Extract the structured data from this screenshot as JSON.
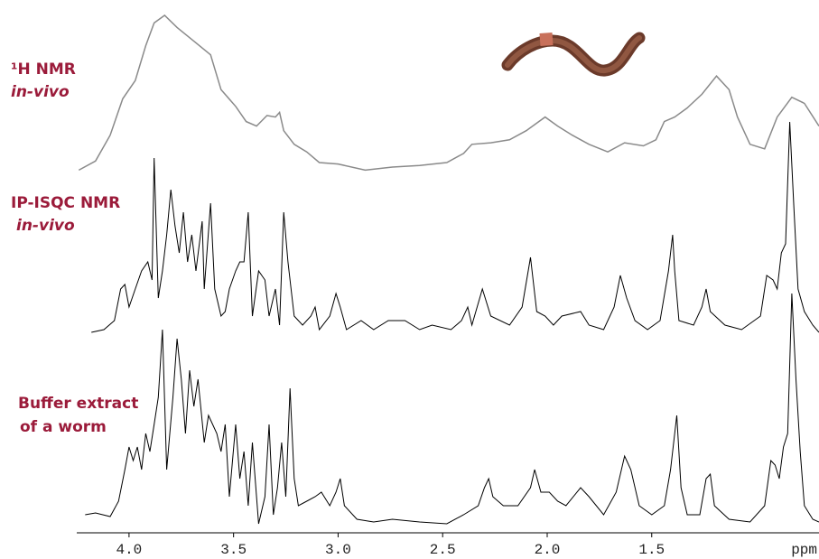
{
  "chart_data": {
    "type": "line",
    "xlim": [
      4.25,
      0.7
    ],
    "xticks": [
      {
        "value": 4.0,
        "label": "4.0"
      },
      {
        "value": 3.5,
        "label": "3.5"
      },
      {
        "value": 3.0,
        "label": "3.0"
      },
      {
        "value": 2.5,
        "label": "2.5"
      },
      {
        "value": 2.0,
        "label": "2.0"
      },
      {
        "value": 1.5,
        "label": "1.5"
      }
    ],
    "x_label": "ppm",
    "series": [
      {
        "name": "¹H NMR",
        "name_line2": "in-vivo",
        "color": "#8a8a8a",
        "ylim": [
          0,
          100
        ],
        "x": [
          4.24,
          4.16,
          4.09,
          4.03,
          3.97,
          3.92,
          3.88,
          3.83,
          3.77,
          3.69,
          3.61,
          3.56,
          3.49,
          3.44,
          3.39,
          3.34,
          3.3,
          3.28,
          3.26,
          3.21,
          3.15,
          3.09,
          3.0,
          2.87,
          2.74,
          2.61,
          2.48,
          2.4,
          2.36,
          2.27,
          2.18,
          2.1,
          2.01,
          1.95,
          1.88,
          1.8,
          1.71,
          1.63,
          1.54,
          1.48,
          1.44,
          1.39,
          1.33,
          1.26,
          1.19,
          1.13,
          1.09,
          1.03,
          0.96,
          0.9,
          0.83,
          0.77,
          0.7
        ],
        "values": [
          -2,
          4,
          21,
          45,
          57,
          80,
          95,
          100,
          92,
          83,
          74,
          51,
          40,
          30,
          27,
          34,
          33,
          36,
          24,
          15,
          10,
          3,
          2,
          -2,
          0,
          1,
          3,
          9,
          15,
          16,
          18,
          24,
          33,
          27,
          21,
          15,
          10,
          16,
          14,
          18,
          30,
          33,
          39,
          48,
          60,
          51,
          33,
          15,
          12,
          33,
          46,
          42,
          27
        ]
      },
      {
        "name": "IP-ISQC NMR",
        "name_line2": "in-vivo",
        "color": "#000000",
        "ylim": [
          0,
          235
        ],
        "x": [
          4.18,
          4.12,
          4.07,
          4.04,
          4.02,
          4.0,
          3.97,
          3.94,
          3.91,
          3.89,
          3.88,
          3.86,
          3.84,
          3.82,
          3.8,
          3.78,
          3.76,
          3.74,
          3.72,
          3.7,
          3.68,
          3.65,
          3.64,
          3.61,
          3.59,
          3.56,
          3.54,
          3.52,
          3.49,
          3.47,
          3.45,
          3.43,
          3.41,
          3.38,
          3.35,
          3.33,
          3.3,
          3.28,
          3.26,
          3.24,
          3.22,
          3.21,
          3.17,
          3.13,
          3.11,
          3.09,
          3.04,
          3.01,
          2.99,
          2.96,
          2.89,
          2.83,
          2.76,
          2.68,
          2.61,
          2.55,
          2.46,
          2.41,
          2.38,
          2.36,
          2.31,
          2.27,
          2.18,
          2.12,
          2.08,
          2.05,
          2.01,
          1.97,
          1.93,
          1.84,
          1.8,
          1.73,
          1.68,
          1.65,
          1.62,
          1.58,
          1.52,
          1.46,
          1.42,
          1.4,
          1.39,
          1.37,
          1.3,
          1.26,
          1.24,
          1.22,
          1.15,
          1.07,
          0.98,
          0.95,
          0.92,
          0.9,
          0.88,
          0.86,
          0.84,
          0.82,
          0.8,
          0.77,
          0.73,
          0.7
        ],
        "values": [
          2,
          5,
          15,
          50,
          55,
          30,
          50,
          70,
          80,
          60,
          195,
          40,
          70,
          110,
          160,
          120,
          90,
          135,
          80,
          110,
          70,
          125,
          50,
          145,
          50,
          20,
          25,
          50,
          70,
          80,
          80,
          135,
          20,
          70,
          60,
          20,
          50,
          10,
          135,
          80,
          40,
          20,
          10,
          20,
          30,
          5,
          20,
          45,
          30,
          5,
          15,
          5,
          15,
          15,
          5,
          10,
          5,
          15,
          30,
          10,
          50,
          20,
          10,
          30,
          85,
          25,
          20,
          10,
          20,
          25,
          10,
          5,
          30,
          65,
          40,
          15,
          5,
          15,
          70,
          110,
          70,
          15,
          10,
          30,
          50,
          25,
          10,
          5,
          20,
          65,
          60,
          50,
          90,
          100,
          235,
          140,
          50,
          25,
          10,
          2
        ]
      },
      {
        "name": "Buffer extract",
        "name_line2": "of a worm",
        "color": "#000000",
        "ylim": [
          0,
          255
        ],
        "x": [
          4.21,
          4.16,
          4.09,
          4.05,
          4.02,
          4.0,
          3.98,
          3.96,
          3.94,
          3.92,
          3.9,
          3.88,
          3.86,
          3.84,
          3.82,
          3.79,
          3.77,
          3.75,
          3.73,
          3.71,
          3.69,
          3.67,
          3.64,
          3.62,
          3.6,
          3.58,
          3.56,
          3.54,
          3.52,
          3.49,
          3.47,
          3.45,
          3.43,
          3.41,
          3.38,
          3.35,
          3.33,
          3.31,
          3.29,
          3.27,
          3.25,
          3.23,
          3.21,
          3.19,
          3.15,
          3.11,
          3.08,
          3.04,
          3.01,
          2.99,
          2.97,
          2.91,
          2.83,
          2.74,
          2.61,
          2.48,
          2.4,
          2.33,
          2.3,
          2.28,
          2.26,
          2.21,
          2.14,
          2.08,
          2.06,
          2.03,
          1.99,
          1.95,
          1.91,
          1.84,
          1.8,
          1.73,
          1.67,
          1.63,
          1.6,
          1.56,
          1.5,
          1.44,
          1.41,
          1.38,
          1.36,
          1.33,
          1.27,
          1.24,
          1.22,
          1.2,
          1.13,
          1.03,
          0.96,
          0.93,
          0.91,
          0.89,
          0.87,
          0.85,
          0.83,
          0.81,
          0.79,
          0.77,
          0.73,
          0.7
        ],
        "values": [
          10,
          12,
          8,
          25,
          60,
          85,
          70,
          85,
          60,
          100,
          80,
          110,
          140,
          215,
          60,
          140,
          205,
          160,
          100,
          170,
          130,
          160,
          90,
          120,
          110,
          100,
          80,
          110,
          30,
          110,
          50,
          80,
          20,
          90,
          0,
          30,
          110,
          10,
          40,
          90,
          30,
          150,
          50,
          20,
          25,
          30,
          35,
          20,
          35,
          50,
          20,
          5,
          2,
          5,
          2,
          0,
          10,
          20,
          40,
          50,
          30,
          20,
          20,
          40,
          60,
          35,
          35,
          25,
          20,
          40,
          30,
          10,
          35,
          75,
          60,
          20,
          10,
          20,
          60,
          120,
          40,
          10,
          10,
          50,
          55,
          20,
          5,
          2,
          20,
          70,
          65,
          50,
          85,
          100,
          255,
          160,
          80,
          20,
          5,
          2
        ]
      }
    ]
  }
}
